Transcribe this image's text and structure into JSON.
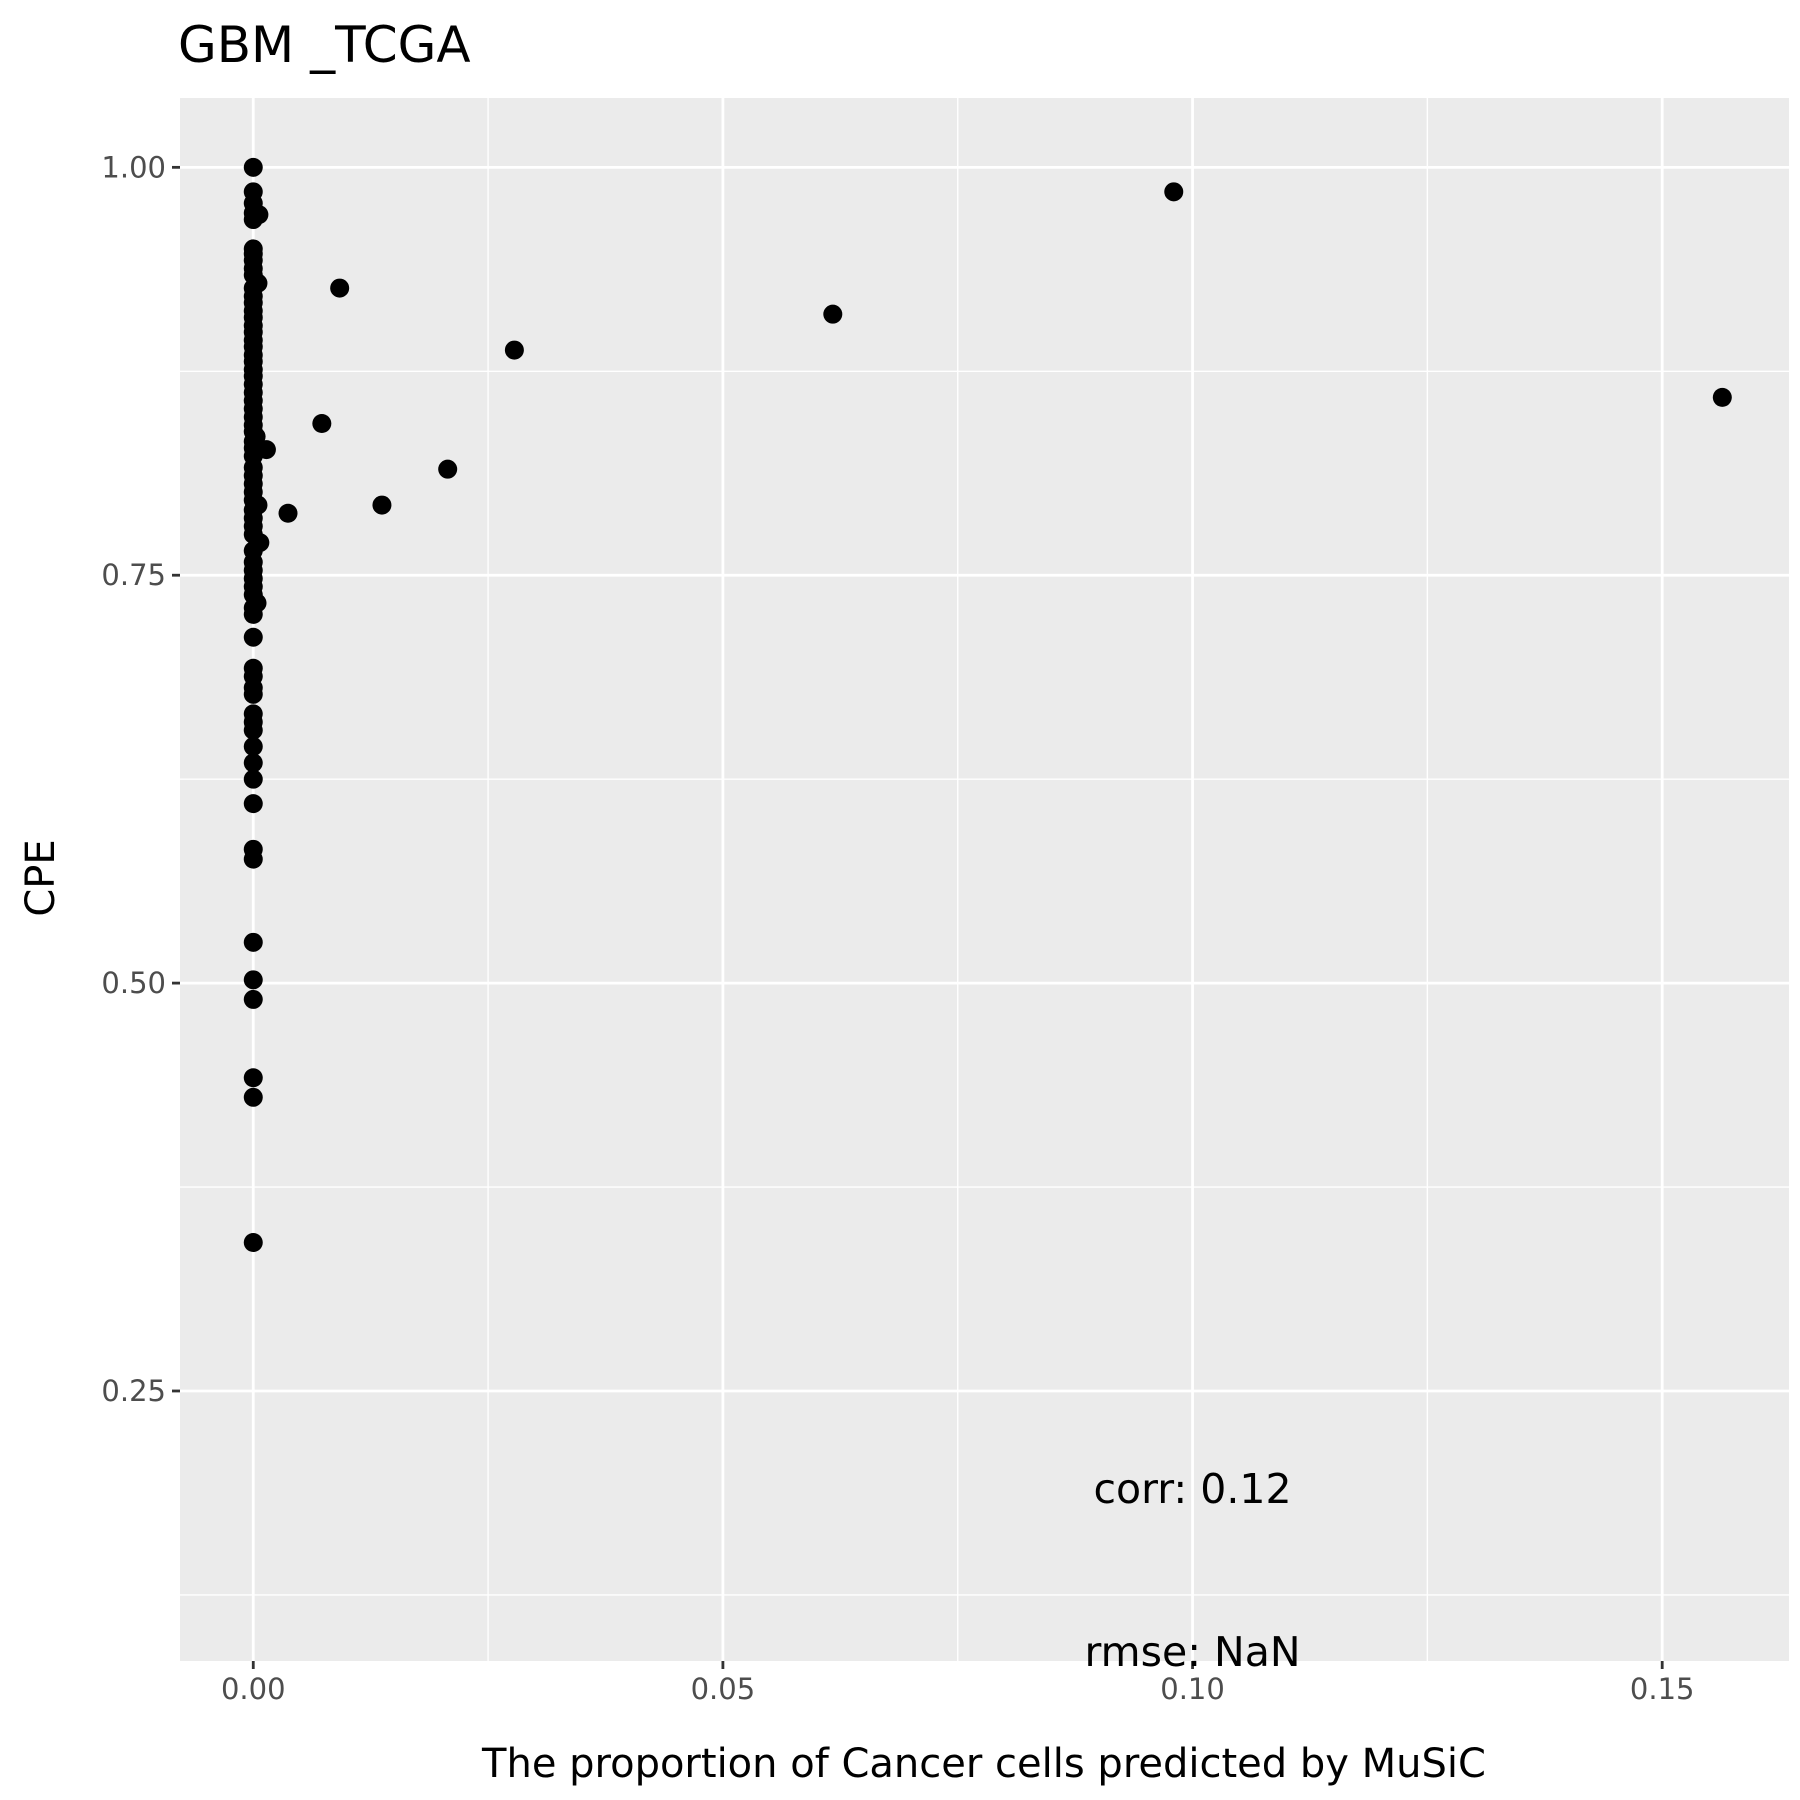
{
  "chart_data": {
    "type": "scatter",
    "title": "GBM _TCGA",
    "xlabel": "The proportion of Cancer cells predicted by MuSiC",
    "ylabel": "CPE",
    "xlim": [
      -0.0078,
      0.1635
    ],
    "ylim": [
      0.0845,
      1.0425
    ],
    "x_ticks": [
      0,
      0.05,
      0.1,
      0.15
    ],
    "x_tick_labels": [
      "0.00",
      "0.05",
      "0.10",
      "0.15"
    ],
    "y_ticks": [
      0.25,
      0.5,
      0.75,
      1.0
    ],
    "y_tick_labels": [
      "0.25",
      "0.50",
      "0.75",
      "1.00"
    ],
    "grid": true,
    "background": "#ebebeb",
    "grid_color": "#ffffff",
    "point_color": "#000000",
    "annotations": [
      {
        "text": "corr: 0.12",
        "x": 0.1,
        "y": 0.19
      },
      {
        "text": "rmse: NaN",
        "x": 0.1,
        "y": 0.09
      }
    ],
    "points": [
      [
        0,
        1.0
      ],
      [
        0,
        0.985
      ],
      [
        0,
        0.978
      ],
      [
        0,
        0.972
      ],
      [
        0.0006,
        0.971
      ],
      [
        0,
        0.968
      ],
      [
        0,
        0.95
      ],
      [
        0,
        0.947
      ],
      [
        0,
        0.943
      ],
      [
        0,
        0.938
      ],
      [
        0,
        0.934
      ],
      [
        0.0005,
        0.929
      ],
      [
        0,
        0.926
      ],
      [
        0,
        0.921
      ],
      [
        0,
        0.917
      ],
      [
        0,
        0.912
      ],
      [
        0,
        0.908
      ],
      [
        0,
        0.903
      ],
      [
        0,
        0.899
      ],
      [
        0,
        0.894
      ],
      [
        0,
        0.89
      ],
      [
        0,
        0.885
      ],
      [
        0,
        0.881
      ],
      [
        0,
        0.876
      ],
      [
        0,
        0.872
      ],
      [
        0,
        0.867
      ],
      [
        0,
        0.862
      ],
      [
        0,
        0.857
      ],
      [
        0,
        0.852
      ],
      [
        0,
        0.847
      ],
      [
        0,
        0.842
      ],
      [
        0,
        0.838
      ],
      [
        0.0003,
        0.835
      ],
      [
        0,
        0.832
      ],
      [
        0,
        0.828
      ],
      [
        0.0014,
        0.827
      ],
      [
        0,
        0.823
      ],
      [
        0,
        0.816
      ],
      [
        0,
        0.811
      ],
      [
        0,
        0.806
      ],
      [
        0,
        0.801
      ],
      [
        0,
        0.796
      ],
      [
        0.0005,
        0.793
      ],
      [
        0,
        0.79
      ],
      [
        0,
        0.785
      ],
      [
        0,
        0.78
      ],
      [
        0,
        0.775
      ],
      [
        0.0007,
        0.77
      ],
      [
        0,
        0.765
      ],
      [
        0,
        0.758
      ],
      [
        0,
        0.753
      ],
      [
        0,
        0.748
      ],
      [
        0,
        0.743
      ],
      [
        0,
        0.738
      ],
      [
        0.0004,
        0.733
      ],
      [
        0,
        0.73
      ],
      [
        0,
        0.726
      ],
      [
        0,
        0.712
      ],
      [
        0,
        0.693
      ],
      [
        0,
        0.688
      ],
      [
        0,
        0.681
      ],
      [
        0,
        0.677
      ],
      [
        0,
        0.665
      ],
      [
        0,
        0.66
      ],
      [
        0,
        0.655
      ],
      [
        0,
        0.645
      ],
      [
        0,
        0.635
      ],
      [
        0,
        0.625
      ],
      [
        0,
        0.61
      ],
      [
        0,
        0.582
      ],
      [
        0,
        0.576
      ],
      [
        0,
        0.525
      ],
      [
        0,
        0.502
      ],
      [
        0,
        0.49
      ],
      [
        0,
        0.442
      ],
      [
        0,
        0.43
      ],
      [
        0,
        0.341
      ],
      [
        0.0092,
        0.926
      ],
      [
        0.0073,
        0.843
      ],
      [
        0.0037,
        0.788
      ],
      [
        0.0137,
        0.793
      ],
      [
        0.0207,
        0.815
      ],
      [
        0.0278,
        0.888
      ],
      [
        0.0617,
        0.91
      ],
      [
        0.098,
        0.985
      ],
      [
        0.1564,
        0.859
      ]
    ]
  }
}
